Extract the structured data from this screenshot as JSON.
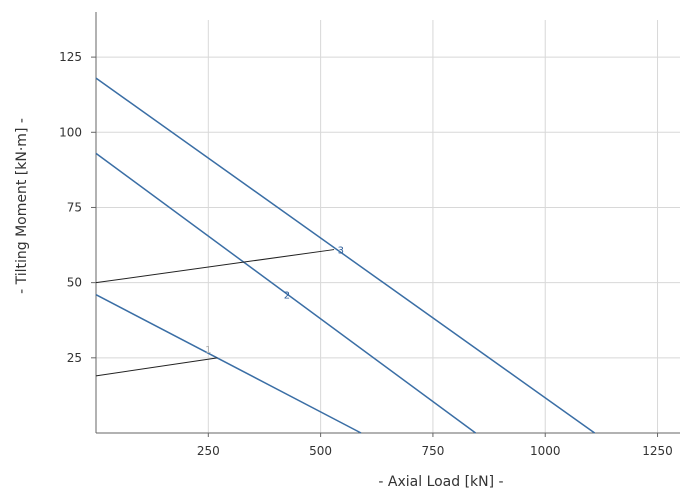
{
  "chart_data": {
    "type": "line",
    "title": "",
    "xlabel": "- Axial Load [kN] -",
    "ylabel": "- Tilting Moment [kN·m] -",
    "xlim": [
      0,
      1300
    ],
    "ylim": [
      0,
      140
    ],
    "x_ticks": [
      {
        "value": 250,
        "label": "250"
      },
      {
        "value": 500,
        "label": "500"
      },
      {
        "value": 750,
        "label": "750"
      },
      {
        "value": 1000,
        "label": "1000"
      },
      {
        "value": 1250,
        "label": "1250"
      }
    ],
    "y_ticks": [
      {
        "value": 25,
        "label": "25"
      },
      {
        "value": 50,
        "label": "50"
      },
      {
        "value": 75,
        "label": "75"
      },
      {
        "value": 100,
        "label": "100"
      },
      {
        "value": 125,
        "label": "125"
      }
    ],
    "grid": true,
    "colors": {
      "limit_curve": "#3a6ea5",
      "operating_line": "#222222",
      "grid": "#d8d8d8",
      "axis": "#666666",
      "label_1": "#b0b0b0",
      "label_2": "#2f5f9a",
      "label_3": "#2f5f9a"
    },
    "series": [
      {
        "kind": "limit",
        "points": [
          [
            0,
            46
          ],
          [
            590,
            0
          ]
        ]
      },
      {
        "kind": "limit",
        "points": [
          [
            0,
            93
          ],
          [
            845,
            0
          ]
        ]
      },
      {
        "kind": "limit",
        "points": [
          [
            0,
            118
          ],
          [
            1110,
            0
          ]
        ]
      },
      {
        "kind": "operating",
        "points": [
          [
            0,
            19
          ],
          [
            270,
            25
          ]
        ]
      },
      {
        "kind": "operating",
        "points": [
          [
            0,
            50
          ],
          [
            530,
            61
          ]
        ]
      }
    ],
    "annotations": [
      {
        "text": "1",
        "x": 250,
        "y": 28,
        "color_key": "label_1"
      },
      {
        "text": "2",
        "x": 425,
        "y": 46,
        "color_key": "label_2"
      },
      {
        "text": "3",
        "x": 545,
        "y": 61,
        "color_key": "label_3"
      }
    ]
  }
}
